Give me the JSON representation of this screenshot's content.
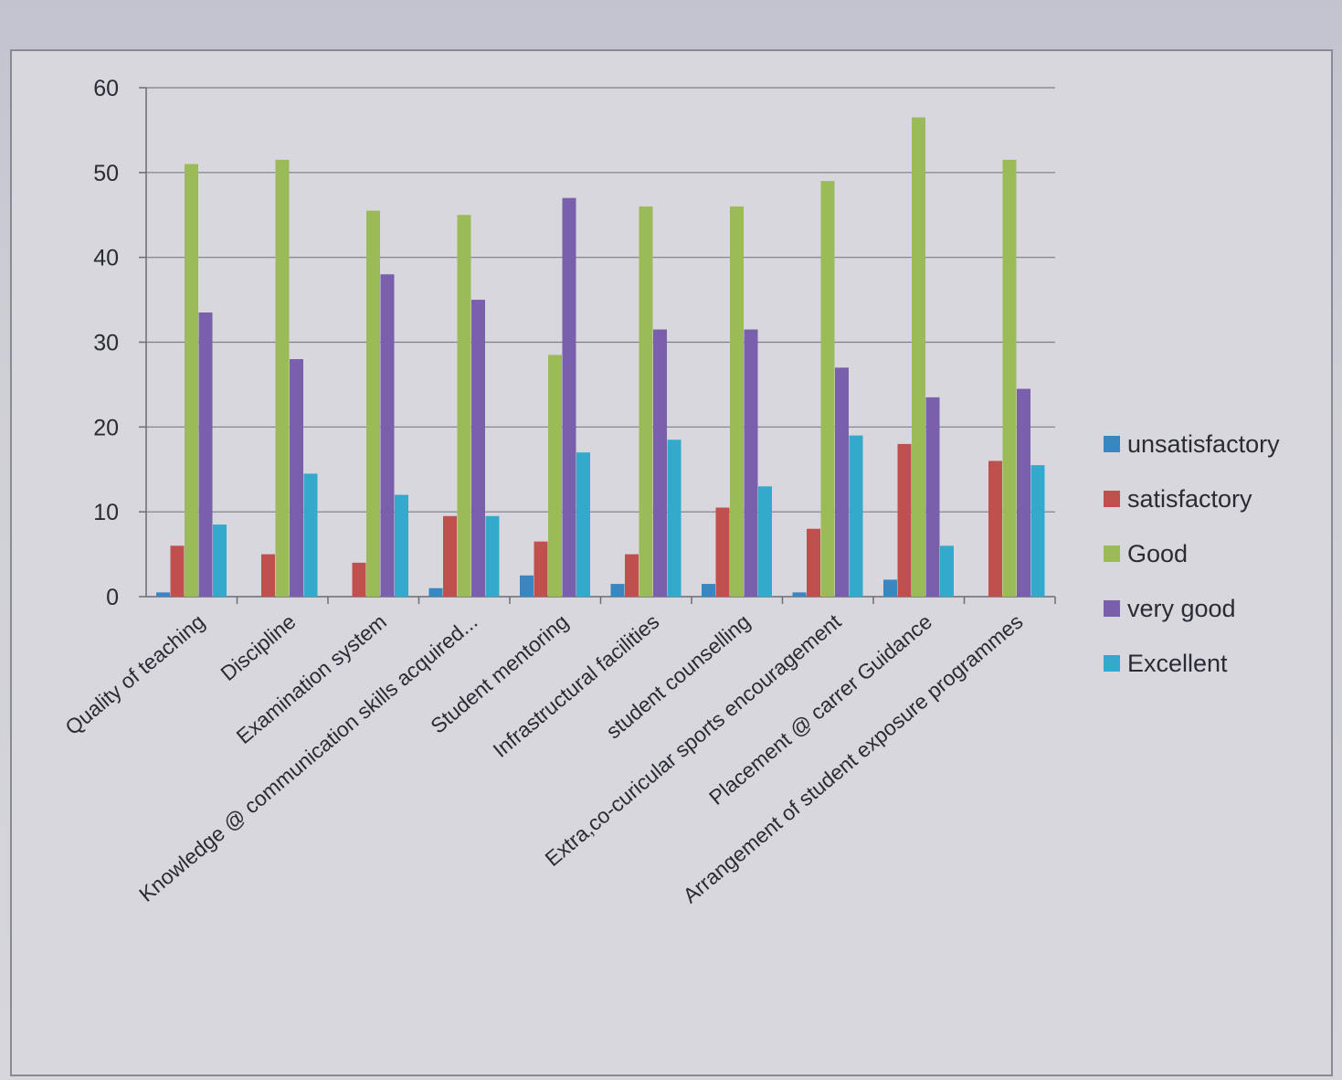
{
  "chart_data": {
    "type": "bar",
    "title": "",
    "xlabel": "",
    "ylabel": "",
    "ylim": [
      0,
      60
    ],
    "yticks": [
      0,
      10,
      20,
      30,
      40,
      50,
      60
    ],
    "grid": true,
    "legend_position": "right",
    "categories": [
      "Quality of teaching",
      "Discipline",
      "Examination system",
      "Knowledge @ communication skills acquired...",
      "Student mentoring",
      "Infrastructural facilities",
      "student counselling",
      "Extra,co-curicular sports encouragement",
      "Placement @ carrer Guidance",
      "Arrangement of student exposure programmes"
    ],
    "series": [
      {
        "name": "unsatisfactory",
        "color": "#3a86c0",
        "values": [
          0.5,
          0,
          0,
          1,
          2.5,
          1.5,
          1.5,
          0.5,
          2,
          0
        ]
      },
      {
        "name": "satisfactory",
        "color": "#c0504d",
        "values": [
          6,
          5,
          4,
          9.5,
          6.5,
          5,
          10.5,
          8,
          18,
          16
        ]
      },
      {
        "name": "Good",
        "color": "#9bbb59",
        "values": [
          51,
          51.5,
          45.5,
          45,
          28.5,
          46,
          46,
          49,
          56.5,
          51.5
        ]
      },
      {
        "name": "very good",
        "color": "#7a5fac",
        "values": [
          33.5,
          28,
          38,
          35,
          47,
          31.5,
          31.5,
          27,
          23.5,
          24.5
        ]
      },
      {
        "name": "Excellent",
        "color": "#33aacb",
        "values": [
          8.5,
          14.5,
          12,
          9.5,
          17,
          18.5,
          13,
          19,
          6,
          15.5
        ]
      }
    ]
  }
}
